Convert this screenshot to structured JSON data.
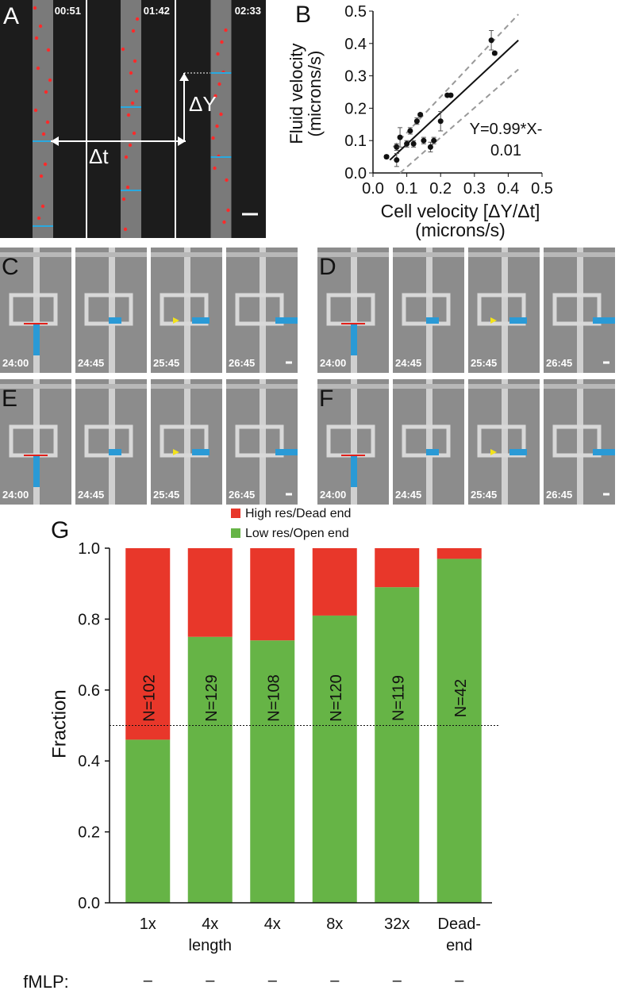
{
  "panels": {
    "A": {
      "label": "A",
      "times": [
        "00:51",
        "01:42",
        "02:33"
      ],
      "delta_y": "ΔY",
      "delta_t": "Δt"
    },
    "C": {
      "label": "C",
      "times": [
        "24:00",
        "24:45",
        "25:45",
        "26:45"
      ]
    },
    "D": {
      "label": "D",
      "times": [
        "24:00",
        "24:45",
        "25:45",
        "26:45"
      ]
    },
    "E": {
      "label": "E",
      "times": [
        "24:00",
        "24:45",
        "25:45",
        "26:45"
      ]
    },
    "F": {
      "label": "F",
      "times": [
        "24:00",
        "24:45",
        "25:45",
        "26:45"
      ]
    }
  },
  "chart_data": [
    {
      "type": "scatter",
      "panel_label": "B",
      "xlabel": "Cell velocity [ΔY/Δt] (microns/s)",
      "ylabel": "Fluid velocity (microns/s)",
      "annotation": "Y=0.99*X-0.01",
      "x": [
        0.04,
        0.07,
        0.07,
        0.08,
        0.1,
        0.11,
        0.12,
        0.13,
        0.14,
        0.15,
        0.17,
        0.18,
        0.2,
        0.22,
        0.23,
        0.35,
        0.36
      ],
      "y": [
        0.05,
        0.04,
        0.08,
        0.11,
        0.09,
        0.13,
        0.09,
        0.16,
        0.18,
        0.1,
        0.08,
        0.1,
        0.16,
        0.24,
        0.24,
        0.41,
        0.37
      ],
      "yerr": [
        0.005,
        0.02,
        0.01,
        0.03,
        0.01,
        0.01,
        0.01,
        0.01,
        0.005,
        0.01,
        0.015,
        0.01,
        0.03,
        0.005,
        0.005,
        0.03,
        0.005
      ],
      "color": "#111111",
      "fit_line": {
        "x": [
          0.05,
          0.43
        ],
        "y": [
          0.04,
          0.41
        ]
      },
      "upper_band": {
        "x": [
          0.06,
          0.43
        ],
        "y": [
          0.08,
          0.49
        ]
      },
      "lower_band": {
        "x": [
          0.08,
          0.43
        ],
        "y": [
          0.0,
          0.32
        ]
      },
      "xlim": [
        0,
        0.5
      ],
      "ylim": [
        0,
        0.5
      ],
      "xticks": [
        {
          "value": 0,
          "label": "0.0"
        },
        {
          "value": 0.1,
          "label": "0.1"
        },
        {
          "value": 0.2,
          "label": "0.2"
        },
        {
          "value": 0.3,
          "label": "0.3"
        },
        {
          "value": 0.4,
          "label": "0.4"
        },
        {
          "value": 0.5,
          "label": "0.5"
        }
      ],
      "yticks": [
        {
          "value": 0,
          "label": "0.0"
        },
        {
          "value": 0.1,
          "label": "0.1"
        },
        {
          "value": 0.2,
          "label": "0.2"
        },
        {
          "value": 0.3,
          "label": "0.3"
        },
        {
          "value": 0.4,
          "label": "0.4"
        },
        {
          "value": 0.5,
          "label": "0.5"
        }
      ]
    },
    {
      "type": "stacked_bar",
      "panel_label": "G",
      "ylabel": "Fraction",
      "categories": [
        "1x",
        "4x length",
        "4x",
        "8x",
        "32x",
        "Dead-end"
      ],
      "series": [
        {
          "name": "Low res/Open end",
          "color": "#66b446",
          "values": [
            0.46,
            0.75,
            0.74,
            0.81,
            0.89,
            0.97
          ]
        },
        {
          "name": "High res/Dead end",
          "color": "#e8372a",
          "values": [
            0.54,
            0.25,
            0.26,
            0.19,
            0.11,
            0.03
          ]
        }
      ],
      "bar_labels": [
        "N=102",
        "N=129",
        "N=108",
        "N=120",
        "N=119",
        "N=42"
      ],
      "reference_line": 0.5,
      "treatment": {
        "label": "fMLP:",
        "values": [
          "–",
          "–",
          "–",
          "–",
          "–",
          "–"
        ]
      },
      "ylim": [
        0,
        1
      ],
      "yticks": [
        {
          "value": 0,
          "label": "0.0"
        },
        {
          "value": 0.2,
          "label": "0.2"
        },
        {
          "value": 0.4,
          "label": "0.4"
        },
        {
          "value": 0.6,
          "label": "0.6"
        },
        {
          "value": 0.8,
          "label": "0.8"
        },
        {
          "value": 1,
          "label": "1.0"
        }
      ]
    }
  ]
}
